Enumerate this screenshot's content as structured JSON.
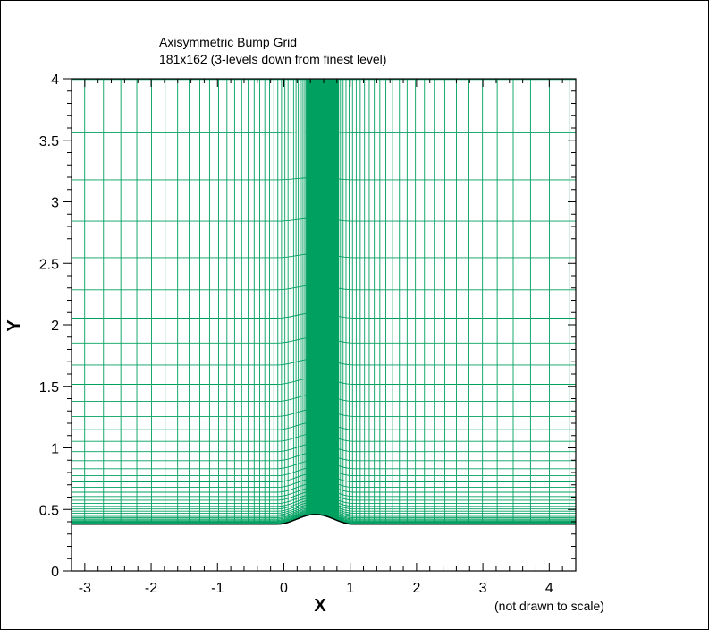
{
  "chart_data": {
    "type": "scatter",
    "title": "Axisymmetric Bump Grid",
    "subtitle": "181x162 (3-levels down from finest level)",
    "note": "(not drawn to scale)",
    "xlabel": "X",
    "ylabel": "Y",
    "xlim": [
      -3.2,
      4.4
    ],
    "ylim": [
      0,
      4
    ],
    "xticks": [
      -3,
      -2,
      -1,
      0,
      1,
      2,
      3,
      4
    ],
    "xtick_labels": [
      "-3",
      "-2",
      "-1",
      "0",
      "1",
      "2",
      "3",
      "4"
    ],
    "yticks": [
      0,
      0.5,
      1,
      1.5,
      2,
      2.5,
      3,
      3.5,
      4
    ],
    "ytick_labels": [
      "0",
      "0.5",
      "1",
      "1.5",
      "2",
      "2.5",
      "3",
      "3.5",
      "4"
    ],
    "grid_color": "#00a060",
    "wall_color": "#000000",
    "wall_y": 0.38,
    "bump": {
      "x_start": -0.1,
      "x_end": 1.05,
      "peak_x": 0.5,
      "peak_y": 0.46
    },
    "grid_size": "181x162"
  }
}
